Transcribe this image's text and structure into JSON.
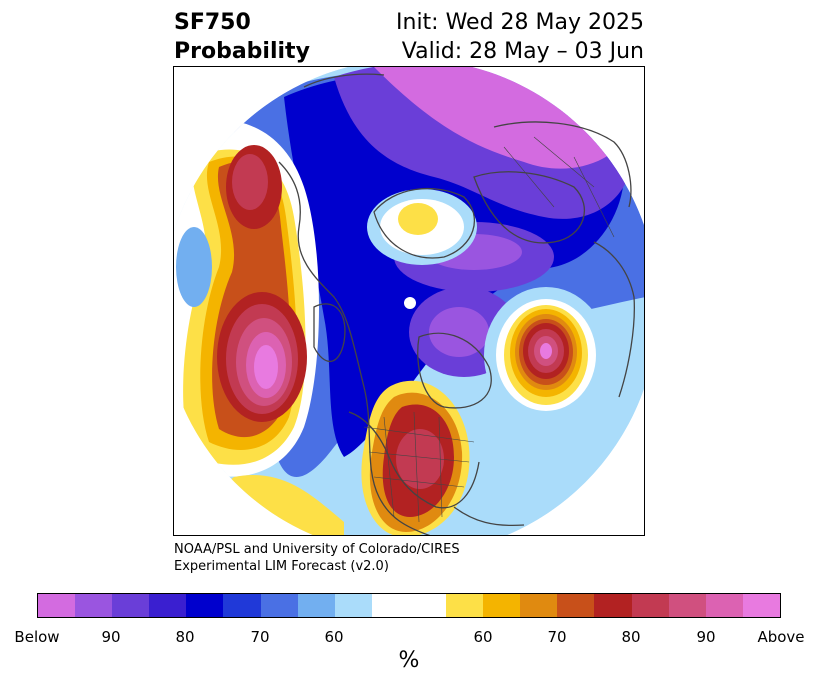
{
  "header": {
    "left_line1": "SF750",
    "left_line2": "Probability",
    "right_line1": "Init: Wed 28 May 2025",
    "right_line2": "Valid: 28 May – 03 Jun"
  },
  "credit": {
    "line1": "NOAA/PSL and University of Colorado/CIRES",
    "line2": "Experimental LIM Forecast (v2.0)"
  },
  "colorbar": {
    "unit": "%",
    "tick_labels": [
      "Below",
      "90",
      "80",
      "70",
      "60",
      "60",
      "70",
      "80",
      "90",
      "Above"
    ],
    "colors": [
      "#d36be0",
      "#9a55e0",
      "#6a3ed8",
      "#3a1fd0",
      "#0000cd",
      "#2039d8",
      "#4a70e4",
      "#72aff0",
      "#aadcfa",
      "#ffffff",
      "#fde047",
      "#f4b400",
      "#e08a10",
      "#c8501a",
      "#b22222",
      "#c23a52",
      "#d0507f",
      "#dc62b2",
      "#e87ae0"
    ]
  },
  "map": {
    "projection": "north-polar-stereographic",
    "field": "SF750 probability",
    "coastline_color": "#444444",
    "features": [
      "below-normal probability over Arctic and northern Eurasia",
      "above-normal center over North Pacific",
      "above-normal center over central-eastern United States",
      "above-normal center over North Atlantic",
      "above-normal center near Bering Sea"
    ]
  }
}
